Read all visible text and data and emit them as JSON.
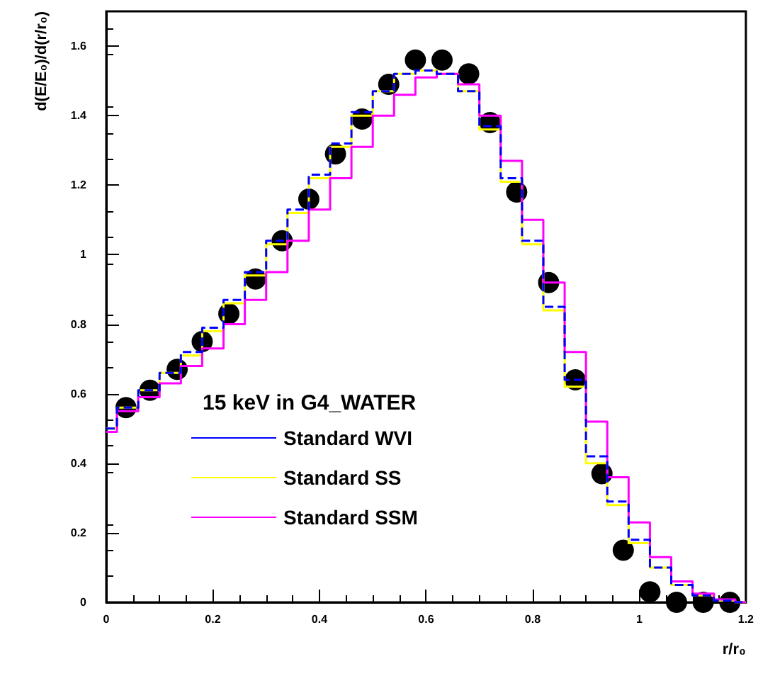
{
  "chart_data": {
    "type": "step",
    "xlabel": "r/r₀",
    "ylabel": "d(E/E₀)/d(r/r₀)",
    "legend_title": "15 keV in G4_WATER",
    "xlim": [
      0,
      1.2
    ],
    "xticks": [
      0,
      0.2,
      0.4,
      0.6,
      0.8,
      1,
      1.2
    ],
    "ylim": [
      0,
      1.7
    ],
    "yticks": [
      0,
      0.2,
      0.4,
      0.6,
      0.8,
      1,
      1.2,
      1.4,
      1.6
    ],
    "grid": false,
    "legend": "bottom left",
    "series": [
      {
        "name": "Standard WVI",
        "line_style": "dashed",
        "color": "#0000ff",
        "x": [
          0,
          0.04,
          0.08,
          0.12,
          0.16,
          0.2,
          0.24,
          0.28,
          0.32,
          0.36,
          0.4,
          0.44,
          0.48,
          0.52,
          0.56,
          0.6,
          0.64,
          0.68,
          0.72,
          0.76,
          0.8,
          0.84,
          0.88,
          0.92,
          0.96,
          1,
          1.04,
          1.08,
          1.12,
          1.16,
          1.2
        ],
        "values": [
          0.5,
          0.56,
          0.61,
          0.66,
          0.72,
          0.79,
          0.87,
          0.95,
          1.04,
          1.13,
          1.23,
          1.32,
          1.41,
          1.47,
          1.52,
          1.53,
          1.52,
          1.47,
          1.37,
          1.22,
          1.04,
          0.85,
          0.64,
          0.42,
          0.29,
          0.18,
          0.1,
          0.05,
          0.02,
          0.005,
          0
        ]
      },
      {
        "name": "Standard SS",
        "color": "#ffff00",
        "x": [
          0,
          0.04,
          0.08,
          0.12,
          0.16,
          0.2,
          0.24,
          0.28,
          0.32,
          0.36,
          0.4,
          0.44,
          0.48,
          0.52,
          0.56,
          0.6,
          0.64,
          0.68,
          0.72,
          0.76,
          0.8,
          0.84,
          0.88,
          0.92,
          0.96,
          1,
          1.04,
          1.08,
          1.12,
          1.16,
          1.2
        ],
        "values": [
          0.5,
          0.56,
          0.61,
          0.66,
          0.71,
          0.78,
          0.86,
          0.94,
          1.03,
          1.12,
          1.22,
          1.31,
          1.4,
          1.47,
          1.52,
          1.53,
          1.52,
          1.47,
          1.36,
          1.21,
          1.03,
          0.84,
          0.62,
          0.4,
          0.28,
          0.17,
          0.1,
          0.05,
          0.02,
          0.005,
          0
        ]
      },
      {
        "name": "Standard SSM",
        "color": "#ff00ff",
        "x": [
          0,
          0.04,
          0.08,
          0.12,
          0.16,
          0.2,
          0.24,
          0.28,
          0.32,
          0.36,
          0.4,
          0.44,
          0.48,
          0.52,
          0.56,
          0.6,
          0.64,
          0.68,
          0.72,
          0.76,
          0.8,
          0.84,
          0.88,
          0.92,
          0.96,
          1,
          1.04,
          1.08,
          1.12,
          1.16,
          1.2
        ],
        "values": [
          0.49,
          0.55,
          0.59,
          0.63,
          0.68,
          0.73,
          0.8,
          0.87,
          0.95,
          1.04,
          1.13,
          1.22,
          1.31,
          1.4,
          1.46,
          1.51,
          1.52,
          1.49,
          1.4,
          1.27,
          1.1,
          0.92,
          0.72,
          0.52,
          0.36,
          0.23,
          0.13,
          0.06,
          0.025,
          0.008,
          0
        ]
      },
      {
        "type": "scatter",
        "color": "#000000",
        "marker": "circle",
        "x": [
          0.037,
          0.082,
          0.133,
          0.18,
          0.23,
          0.28,
          0.33,
          0.38,
          0.43,
          0.48,
          0.53,
          0.58,
          0.63,
          0.68,
          0.72,
          0.77,
          0.83,
          0.88,
          0.93,
          0.97,
          1.02,
          1.07,
          1.12,
          1.17
        ],
        "values": [
          0.56,
          0.61,
          0.67,
          0.75,
          0.83,
          0.93,
          1.04,
          1.16,
          1.29,
          1.39,
          1.49,
          1.56,
          1.56,
          1.52,
          1.38,
          1.18,
          0.92,
          0.64,
          0.37,
          0.15,
          0.03,
          0,
          0,
          0
        ]
      }
    ]
  }
}
